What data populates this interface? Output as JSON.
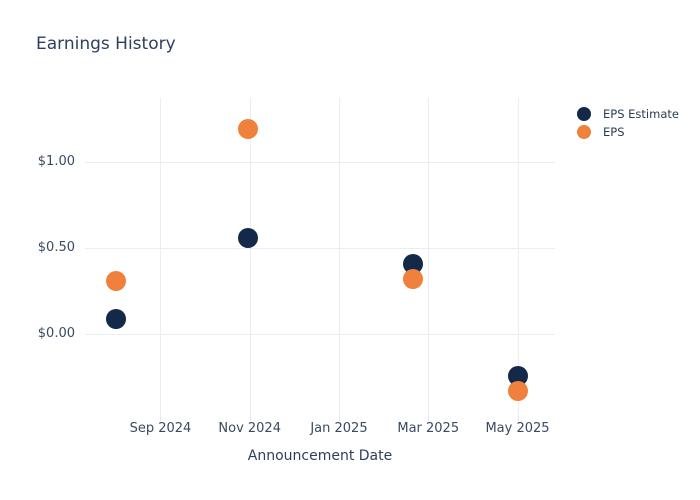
{
  "title": "Earnings History",
  "colors": {
    "eps_estimate": "#14284a",
    "eps": "#f0813c",
    "grid": "#e9edf5",
    "tick_text": "#3a4a61",
    "title_text": "#2c3f5e",
    "background": "#ffffff"
  },
  "legend": {
    "position": "top-right-outside",
    "items": [
      {
        "label": "EPS Estimate",
        "color": "#14284a"
      },
      {
        "label": "EPS",
        "color": "#f0813c"
      }
    ]
  },
  "chart_data": {
    "type": "scatter",
    "title": "Earnings History",
    "xlabel": "Announcement Date",
    "ylabel": "",
    "grid": true,
    "legend_position": "top-right-outside",
    "x_axis_unit": "months after first announcement (estimated from gridlines)",
    "xlim": [
      -0.69,
      9.84
    ],
    "ylim": [
      -0.467,
      1.371
    ],
    "x_ticks": [
      {
        "pos": 1,
        "label": "Sep 2024"
      },
      {
        "pos": 3,
        "label": "Nov 2024"
      },
      {
        "pos": 5,
        "label": "Jan 2025"
      },
      {
        "pos": 7,
        "label": "Mar 2025"
      },
      {
        "pos": 9,
        "label": "May 2025"
      }
    ],
    "y_ticks": [
      {
        "value": 0.0,
        "label": "$0.00"
      },
      {
        "value": 0.5,
        "label": "$0.50"
      },
      {
        "value": 1.0,
        "label": "$1.00"
      }
    ],
    "series": [
      {
        "name": "EPS Estimate",
        "color": "#14284a",
        "points": [
          {
            "x": 0.0,
            "y": 0.09
          },
          {
            "x": 2.97,
            "y": 0.56
          },
          {
            "x": 6.65,
            "y": 0.41
          },
          {
            "x": 9.0,
            "y": -0.24
          }
        ]
      },
      {
        "name": "EPS",
        "color": "#f0813c",
        "points": [
          {
            "x": 0.0,
            "y": 0.31
          },
          {
            "x": 2.97,
            "y": 1.19
          },
          {
            "x": 6.65,
            "y": 0.32
          },
          {
            "x": 9.0,
            "y": -0.33
          }
        ]
      }
    ]
  }
}
